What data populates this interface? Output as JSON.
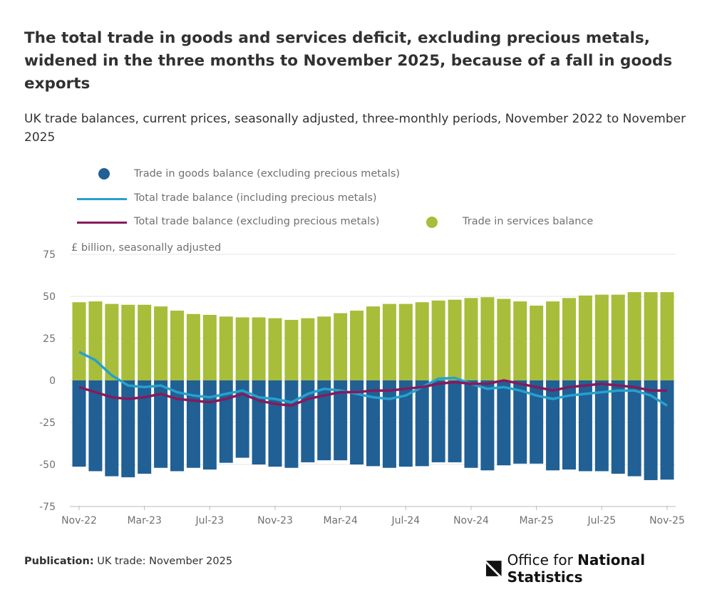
{
  "title": "The total trade in goods and services deficit, excluding precious metals, widened in the three months to November 2025, because of a fall in goods exports",
  "subtitle": "UK trade balances, current prices, seasonally adjusted, three-monthly periods, November 2022 to November 2025",
  "footer": {
    "label": "Publication:",
    "text": "UK trade: November 2025"
  },
  "logo": {
    "text_light": "Office for ",
    "text_bold": "National Statistics"
  },
  "chart_data": {
    "type": "bar",
    "ylabel": "£ billion, seasonally adjusted",
    "ylim": [
      -75,
      75
    ],
    "yticks": [
      75,
      50,
      25,
      0,
      -25,
      -50,
      -75
    ],
    "grid": true,
    "legend_placement": "top",
    "x": [
      "Nov-22",
      "Dec-22",
      "Jan-23",
      "Feb-23",
      "Mar-23",
      "Apr-23",
      "May-23",
      "Jun-23",
      "Jul-23",
      "Aug-23",
      "Sep-23",
      "Oct-23",
      "Nov-23",
      "Dec-23",
      "Jan-24",
      "Feb-24",
      "Mar-24",
      "Apr-24",
      "May-24",
      "Jun-24",
      "Jul-24",
      "Aug-24",
      "Sep-24",
      "Oct-24",
      "Nov-24",
      "Dec-24",
      "Jan-25",
      "Feb-25",
      "Mar-25",
      "Apr-25",
      "May-25",
      "Jun-25",
      "Jul-25",
      "Aug-25",
      "Sep-25",
      "Oct-25",
      "Nov-25"
    ],
    "xticks": [
      "Nov-22",
      "Mar-23",
      "Jul-23",
      "Nov-23",
      "Mar-24",
      "Jul-24",
      "Nov-24",
      "Mar-25",
      "Jul-25",
      "Nov-25"
    ],
    "series": [
      {
        "name": "Trade in goods balance (excluding precious metals)",
        "type": "bar",
        "color": "#206095",
        "values": [
          -51.3,
          -54,
          -57,
          -57.6,
          -55.5,
          -52,
          -54,
          -52,
          -53,
          -49,
          -46,
          -50,
          -51.3,
          -52,
          -48.7,
          -47.5,
          -47.5,
          -50,
          -51,
          -52,
          -51.3,
          -51,
          -48.7,
          -48.7,
          -52,
          -53.5,
          -50.5,
          -49.5,
          -49.5,
          -53.5,
          -53,
          -54,
          -54,
          -55.5,
          -57,
          -59.3,
          -59
        ]
      },
      {
        "name": "Trade in services balance",
        "type": "bar",
        "color": "#a8bd3a",
        "values": [
          46.5,
          47,
          45.5,
          45,
          45,
          44,
          41.5,
          39.5,
          39,
          38,
          37.5,
          37.5,
          37,
          36,
          37,
          38,
          40,
          41.5,
          44,
          45.5,
          45.5,
          46.5,
          47.5,
          48,
          49,
          49.5,
          48.5,
          47,
          44.5,
          47,
          49,
          50.5,
          51,
          51,
          52.5,
          52.5,
          52.5
        ]
      },
      {
        "name": "Total trade balance (including precious metals)",
        "type": "line",
        "color": "#27a0cc",
        "values": [
          17,
          12,
          3,
          -3,
          -4,
          -3,
          -7,
          -9,
          -10,
          -8,
          -6,
          -10,
          -11,
          -13,
          -8,
          -5,
          -6,
          -8,
          -10,
          -11,
          -9,
          -4,
          1,
          1.5,
          -2,
          -5,
          -4,
          -6,
          -9,
          -11,
          -9,
          -8,
          -7,
          -6,
          -6,
          -9,
          -15
        ]
      },
      {
        "name": "Total trade balance (excluding precious metals)",
        "type": "line",
        "color": "#871a5b",
        "values": [
          -4,
          -7,
          -10,
          -11,
          -10,
          -8,
          -11,
          -12,
          -13,
          -11,
          -8,
          -12,
          -14,
          -15,
          -11,
          -9,
          -7,
          -7,
          -6,
          -6,
          -5,
          -4,
          -2,
          -1,
          -2,
          -2,
          0,
          -2,
          -4,
          -6,
          -4,
          -3,
          -2,
          -3,
          -4,
          -6,
          -6
        ]
      }
    ]
  }
}
